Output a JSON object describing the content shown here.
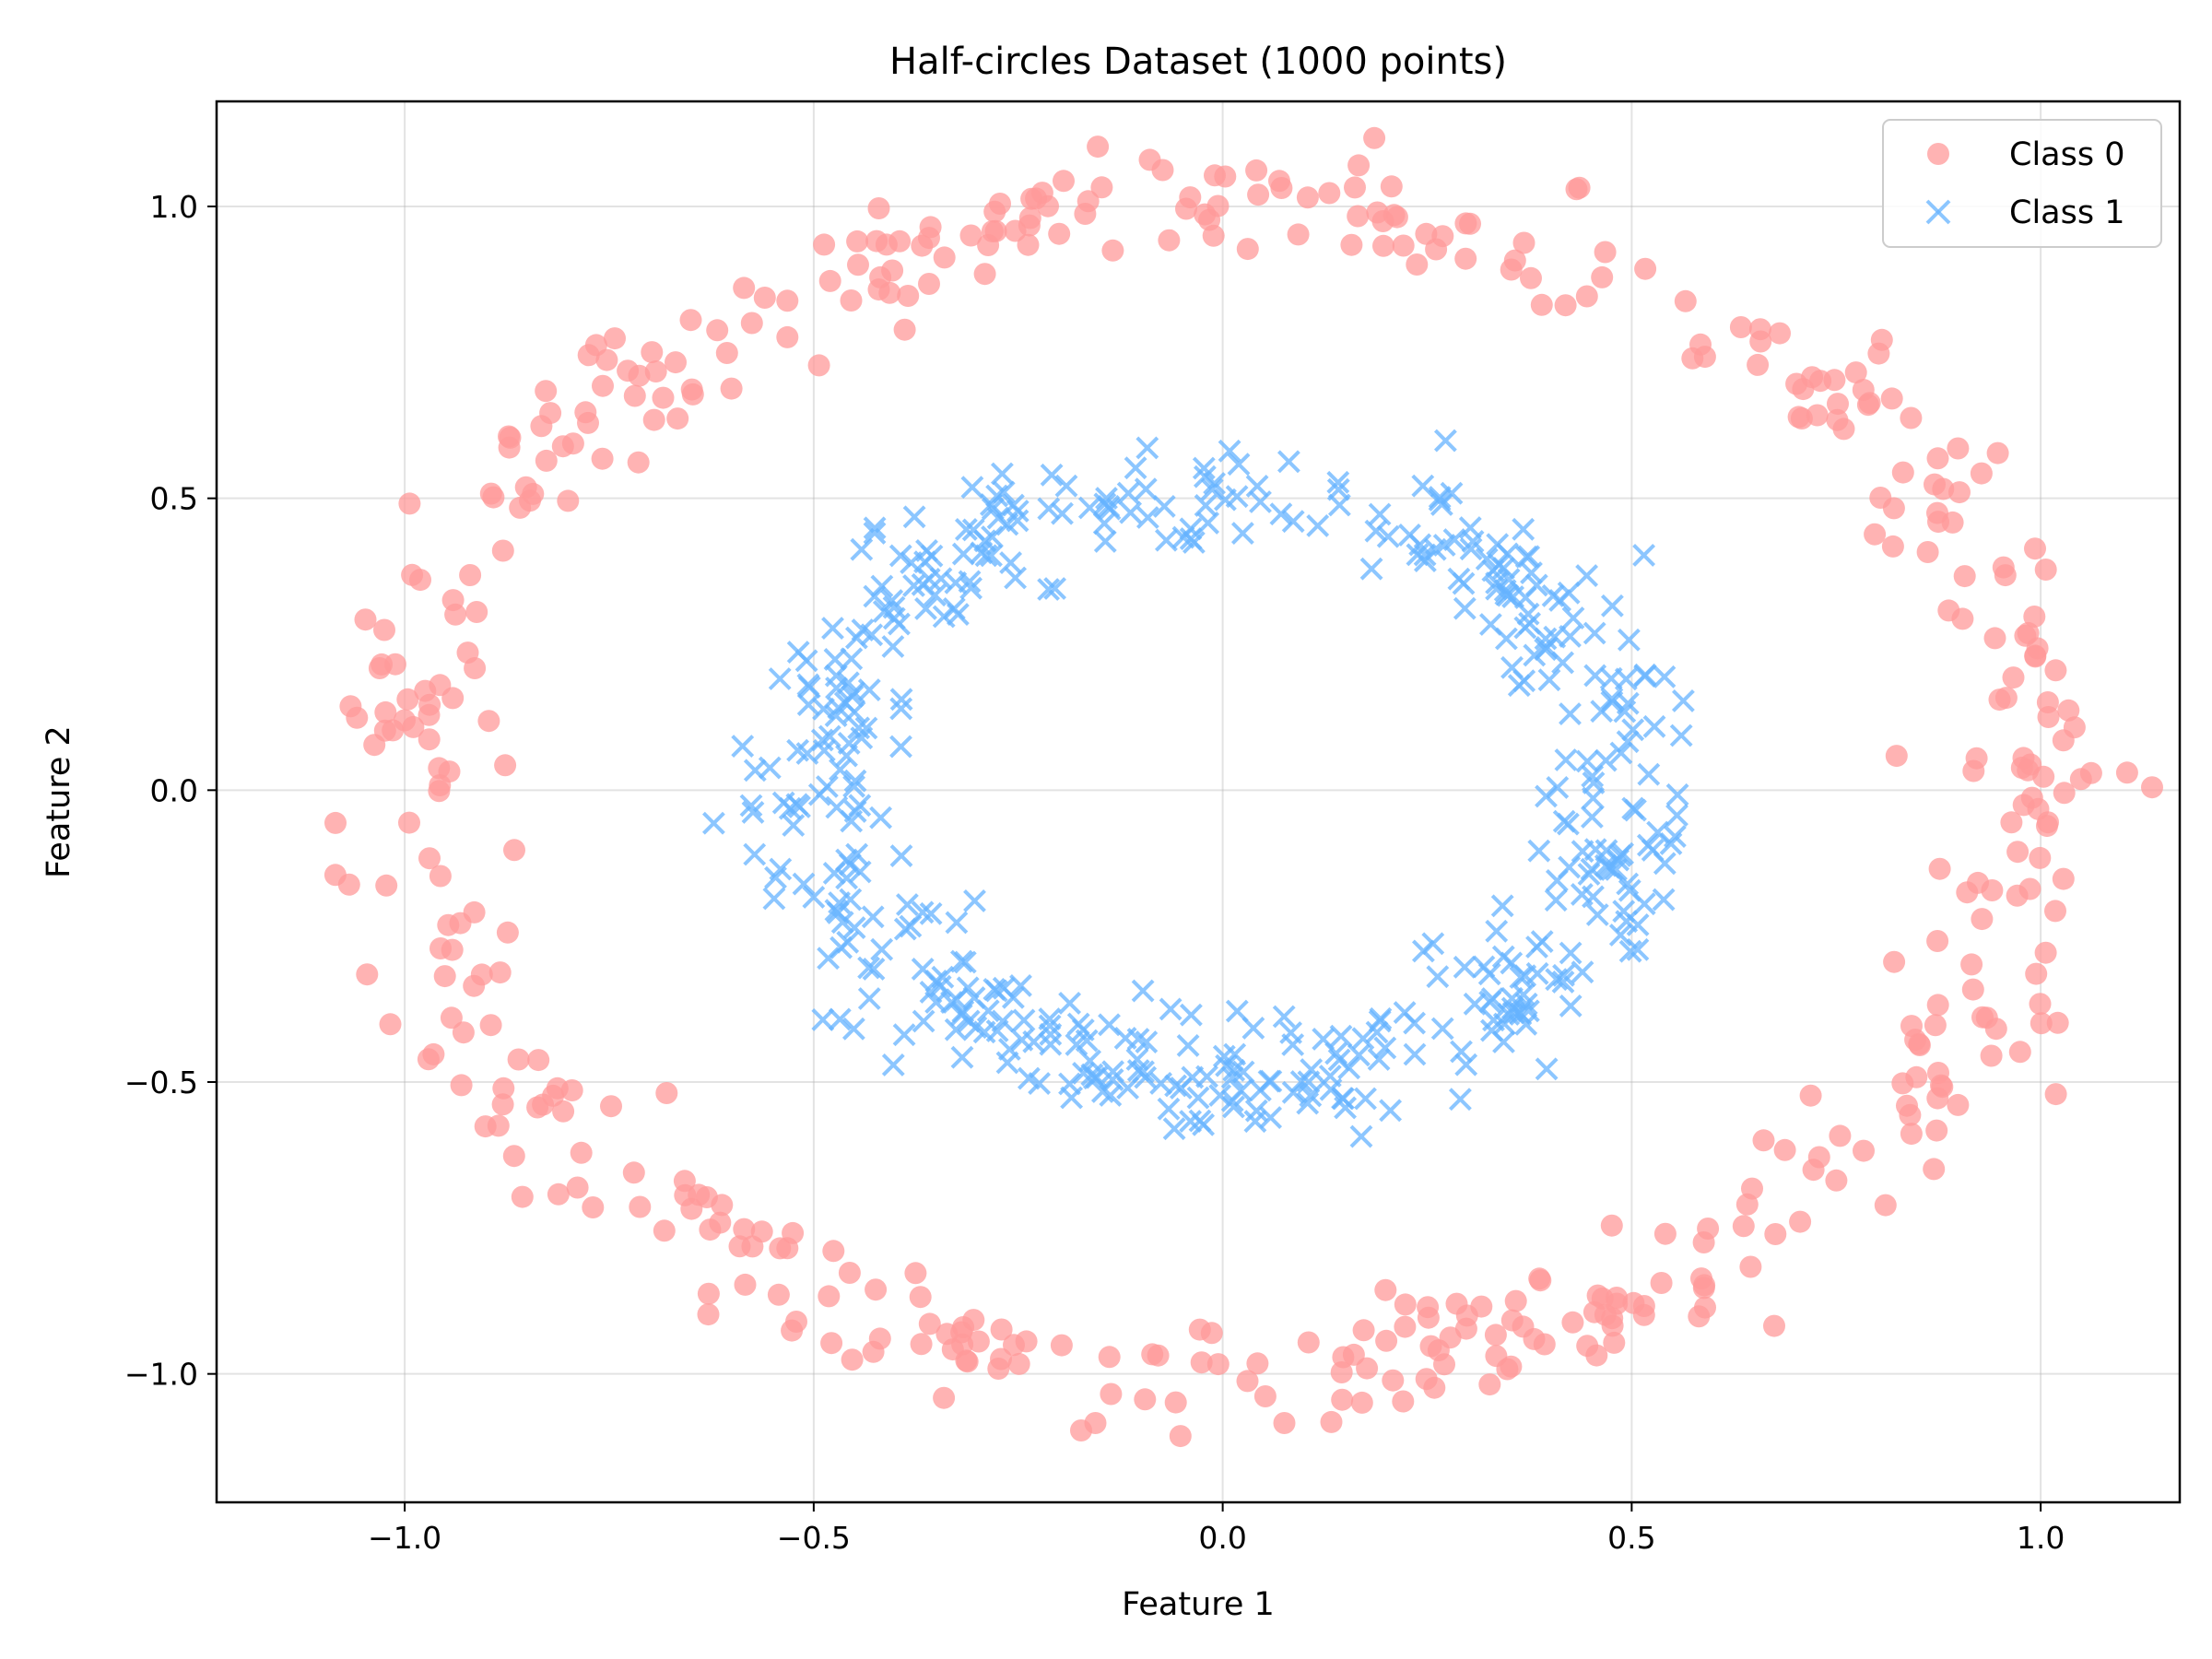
{
  "chart_data": {
    "type": "scatter",
    "title": "Half-circles Dataset (1000 points)",
    "xlabel": "Feature 1",
    "ylabel": "Feature 2",
    "xlim": [
      -1.23,
      1.17
    ],
    "ylim": [
      -1.22,
      1.18
    ],
    "xticks": [
      -1.0,
      -0.5,
      0.0,
      0.5,
      1.0
    ],
    "yticks": [
      -1.0,
      -0.5,
      0.0,
      0.5,
      1.0
    ],
    "xtick_labels": [
      "−1.0",
      "−0.5",
      "0.0",
      "0.5",
      "1.0"
    ],
    "ytick_labels": [
      "−1.0",
      "−0.5",
      "0.0",
      "0.5",
      "1.0"
    ],
    "grid": true,
    "legend_position": "top-right",
    "series": [
      {
        "name": "Class 0",
        "marker": "circle",
        "color": "#ff9999",
        "alpha": 0.75,
        "radius_center": 1.0,
        "radius_noise": 0.05,
        "count": 500
      },
      {
        "name": "Class 1",
        "marker": "x",
        "color": "#66b3ff",
        "alpha": 0.75,
        "radius_center": 0.5,
        "radius_noise": 0.05,
        "count": 500
      }
    ]
  }
}
